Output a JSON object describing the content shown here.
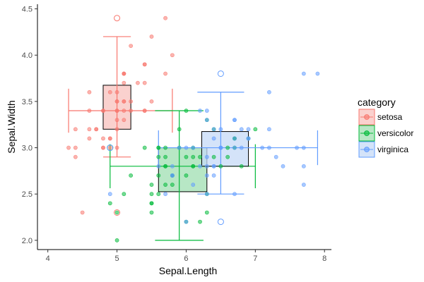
{
  "chart_data": {
    "type": "scatter",
    "title": "",
    "xlabel": "Sepal.Length",
    "ylabel": "Sepal.Width",
    "xlim": [
      3.85,
      8.1
    ],
    "ylim": [
      1.9,
      4.55
    ],
    "x_ticks": [
      4,
      5,
      6,
      7,
      8
    ],
    "y_ticks": [
      2.0,
      2.5,
      3.0,
      3.5,
      4.0,
      4.5
    ],
    "y_tick_labels": [
      "2.0",
      "2.5",
      "3.0",
      "3.5",
      "4.0",
      "4.5"
    ],
    "grid": false,
    "legend": {
      "title": "category",
      "position": "right"
    },
    "series": [
      {
        "name": "setosa",
        "color": "#F8766D",
        "fill": "#F8C2BD",
        "summary": {
          "x_q1": 4.8,
          "x_median": 5.0,
          "x_q3": 5.2,
          "x_min": 4.3,
          "x_max": 5.8,
          "y_q1": 3.2,
          "y_median": 3.4,
          "y_q3": 3.675,
          "y_min": 2.9,
          "y_max": 4.2
        },
        "outliers": [
          [
            5.0,
            4.4
          ],
          [
            5.0,
            2.3
          ]
        ],
        "points": [
          [
            5.1,
            3.5
          ],
          [
            4.9,
            3.0
          ],
          [
            4.7,
            3.2
          ],
          [
            4.6,
            3.1
          ],
          [
            5.0,
            3.6
          ],
          [
            5.4,
            3.9
          ],
          [
            4.6,
            3.4
          ],
          [
            5.0,
            3.4
          ],
          [
            4.4,
            2.9
          ],
          [
            4.9,
            3.1
          ],
          [
            5.4,
            3.7
          ],
          [
            4.8,
            3.4
          ],
          [
            4.8,
            3.0
          ],
          [
            4.3,
            3.0
          ],
          [
            5.8,
            4.0
          ],
          [
            5.7,
            4.4
          ],
          [
            5.4,
            3.9
          ],
          [
            5.1,
            3.5
          ],
          [
            5.7,
            3.8
          ],
          [
            5.1,
            3.8
          ],
          [
            5.4,
            3.4
          ],
          [
            5.1,
            3.7
          ],
          [
            4.6,
            3.6
          ],
          [
            5.1,
            3.3
          ],
          [
            4.8,
            3.4
          ],
          [
            5.0,
            3.0
          ],
          [
            5.0,
            3.4
          ],
          [
            5.2,
            3.5
          ],
          [
            5.2,
            3.4
          ],
          [
            4.7,
            3.2
          ],
          [
            4.8,
            3.1
          ],
          [
            5.4,
            3.4
          ],
          [
            5.2,
            4.1
          ],
          [
            5.5,
            4.2
          ],
          [
            4.9,
            3.1
          ],
          [
            5.0,
            3.2
          ],
          [
            5.5,
            3.5
          ],
          [
            4.9,
            3.6
          ],
          [
            4.4,
            3.0
          ],
          [
            5.1,
            3.4
          ],
          [
            5.0,
            3.5
          ],
          [
            4.5,
            2.3
          ],
          [
            4.4,
            3.2
          ],
          [
            5.0,
            3.5
          ],
          [
            5.1,
            3.8
          ],
          [
            4.8,
            3.0
          ],
          [
            5.1,
            3.8
          ],
          [
            4.6,
            3.2
          ],
          [
            5.3,
            3.7
          ],
          [
            5.0,
            3.3
          ]
        ]
      },
      {
        "name": "versicolor",
        "color": "#00BA38",
        "fill": "#9FDFB2",
        "summary": {
          "x_q1": 5.6,
          "x_median": 5.9,
          "x_q3": 6.3,
          "x_min": 4.9,
          "x_max": 7.0,
          "y_q1": 2.525,
          "y_median": 2.8,
          "y_q3": 3.0,
          "y_min": 2.0,
          "y_max": 3.4
        },
        "outliers": [
          [
            4.9,
            3.0
          ]
        ],
        "points": [
          [
            7.0,
            3.2
          ],
          [
            6.4,
            3.2
          ],
          [
            6.9,
            3.1
          ],
          [
            5.5,
            2.3
          ],
          [
            6.5,
            2.8
          ],
          [
            5.7,
            2.8
          ],
          [
            6.3,
            3.3
          ],
          [
            4.9,
            2.4
          ],
          [
            6.6,
            2.9
          ],
          [
            5.2,
            2.7
          ],
          [
            5.0,
            2.0
          ],
          [
            5.9,
            3.0
          ],
          [
            6.0,
            2.2
          ],
          [
            6.1,
            2.9
          ],
          [
            5.6,
            2.9
          ],
          [
            6.7,
            3.1
          ],
          [
            5.6,
            3.0
          ],
          [
            5.8,
            2.7
          ],
          [
            6.2,
            2.2
          ],
          [
            5.6,
            2.5
          ],
          [
            5.9,
            3.2
          ],
          [
            6.1,
            2.8
          ],
          [
            6.3,
            2.5
          ],
          [
            6.1,
            2.8
          ],
          [
            6.4,
            2.9
          ],
          [
            6.6,
            3.0
          ],
          [
            6.8,
            2.8
          ],
          [
            6.7,
            3.0
          ],
          [
            6.0,
            2.9
          ],
          [
            5.7,
            2.6
          ],
          [
            5.5,
            2.4
          ],
          [
            5.5,
            2.4
          ],
          [
            5.8,
            2.7
          ],
          [
            6.0,
            2.7
          ],
          [
            5.4,
            3.0
          ],
          [
            6.0,
            3.4
          ],
          [
            6.7,
            3.1
          ],
          [
            6.3,
            2.3
          ],
          [
            5.6,
            3.0
          ],
          [
            5.5,
            2.5
          ],
          [
            5.5,
            2.6
          ],
          [
            6.1,
            3.0
          ],
          [
            5.8,
            2.6
          ],
          [
            5.0,
            2.3
          ],
          [
            5.6,
            2.7
          ],
          [
            5.7,
            3.0
          ],
          [
            5.7,
            2.9
          ],
          [
            6.2,
            2.9
          ],
          [
            5.1,
            2.5
          ],
          [
            5.7,
            2.8
          ]
        ]
      },
      {
        "name": "virginica",
        "color": "#619CFF",
        "fill": "#C6D9F7",
        "summary": {
          "x_q1": 6.225,
          "x_median": 6.5,
          "x_q3": 6.9,
          "x_min": 5.6,
          "x_max": 7.9,
          "y_q1": 2.8,
          "y_median": 3.0,
          "y_q3": 3.175,
          "y_min": 2.5,
          "y_max": 3.6
        },
        "outliers": [
          [
            4.9,
            3.0
          ],
          [
            6.5,
            3.8
          ],
          [
            6.5,
            2.2
          ]
        ],
        "points": [
          [
            6.3,
            3.3
          ],
          [
            5.8,
            2.7
          ],
          [
            7.1,
            3.0
          ],
          [
            6.3,
            2.9
          ],
          [
            6.5,
            3.0
          ],
          [
            7.6,
            3.0
          ],
          [
            4.9,
            2.5
          ],
          [
            7.3,
            2.9
          ],
          [
            6.7,
            2.5
          ],
          [
            7.2,
            3.6
          ],
          [
            6.5,
            3.2
          ],
          [
            6.4,
            2.7
          ],
          [
            6.8,
            3.0
          ],
          [
            5.7,
            2.5
          ],
          [
            5.8,
            2.8
          ],
          [
            6.4,
            3.2
          ],
          [
            6.5,
            3.0
          ],
          [
            7.7,
            3.8
          ],
          [
            7.7,
            2.6
          ],
          [
            6.0,
            2.2
          ],
          [
            6.9,
            3.2
          ],
          [
            5.6,
            2.8
          ],
          [
            7.7,
            2.8
          ],
          [
            6.3,
            2.7
          ],
          [
            6.7,
            3.3
          ],
          [
            7.2,
            3.2
          ],
          [
            6.2,
            2.8
          ],
          [
            6.1,
            3.0
          ],
          [
            6.4,
            2.8
          ],
          [
            7.2,
            3.0
          ],
          [
            7.4,
            2.8
          ],
          [
            7.9,
            3.8
          ],
          [
            6.4,
            2.8
          ],
          [
            6.3,
            2.8
          ],
          [
            6.1,
            2.6
          ],
          [
            7.7,
            3.0
          ],
          [
            6.3,
            3.4
          ],
          [
            6.4,
            3.1
          ],
          [
            6.0,
            3.0
          ],
          [
            6.9,
            3.1
          ],
          [
            6.7,
            3.1
          ],
          [
            6.9,
            3.1
          ],
          [
            5.8,
            2.7
          ],
          [
            6.8,
            3.2
          ],
          [
            6.7,
            3.3
          ],
          [
            6.7,
            3.0
          ],
          [
            6.3,
            2.5
          ],
          [
            6.5,
            3.0
          ],
          [
            6.2,
            3.4
          ],
          [
            5.9,
            3.0
          ]
        ]
      }
    ]
  }
}
